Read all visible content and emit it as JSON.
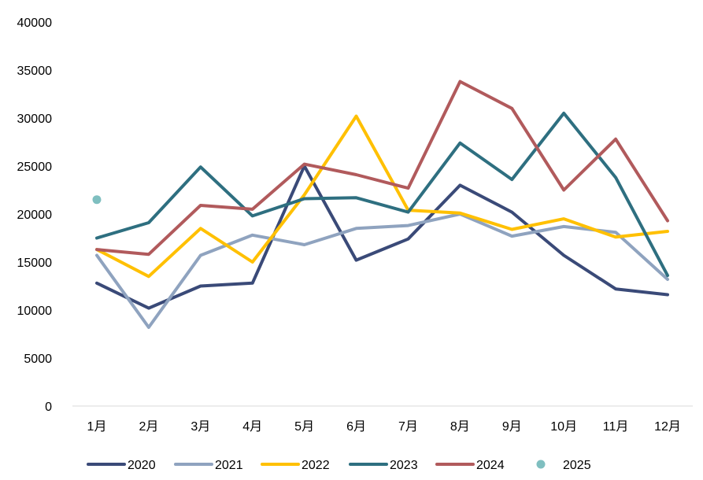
{
  "chart_data": {
    "type": "line",
    "title": "",
    "xlabel": "",
    "ylabel": "",
    "categories": [
      "1月",
      "2月",
      "3月",
      "4月",
      "5月",
      "6月",
      "7月",
      "8月",
      "9月",
      "10月",
      "11月",
      "12月"
    ],
    "ylim": [
      0,
      40000
    ],
    "yticks": [
      0,
      5000,
      10000,
      15000,
      20000,
      25000,
      30000,
      35000,
      40000
    ],
    "grid": false,
    "legend_position": "bottom",
    "series": [
      {
        "name": "2020",
        "color": "#3a4a78",
        "style": "line",
        "values": [
          12800,
          10200,
          12500,
          12800,
          25000,
          15200,
          17400,
          23000,
          20200,
          15700,
          12200,
          11600
        ]
      },
      {
        "name": "2021",
        "color": "#8fa3bf",
        "style": "line",
        "values": [
          15700,
          8200,
          15700,
          17800,
          16800,
          18500,
          18800,
          20000,
          17700,
          18700,
          18100,
          13200
        ]
      },
      {
        "name": "2022",
        "color": "#ffc000",
        "style": "line",
        "values": [
          16300,
          13500,
          18500,
          15000,
          22000,
          30200,
          20400,
          20100,
          18400,
          19500,
          17600,
          18200
        ]
      },
      {
        "name": "2023",
        "color": "#2e6f80",
        "style": "line",
        "values": [
          17500,
          19100,
          24900,
          19800,
          21600,
          21700,
          20200,
          27400,
          23600,
          30500,
          23800,
          13600
        ]
      },
      {
        "name": "2024",
        "color": "#b15a5c",
        "style": "line",
        "values": [
          16300,
          15800,
          20900,
          20500,
          25200,
          24100,
          22700,
          33800,
          31000,
          22500,
          27800,
          19300
        ]
      },
      {
        "name": "2025",
        "color": "#7fbfc0",
        "style": "marker",
        "values": [
          21500,
          null,
          null,
          null,
          null,
          null,
          null,
          null,
          null,
          null,
          null,
          null
        ]
      }
    ]
  }
}
